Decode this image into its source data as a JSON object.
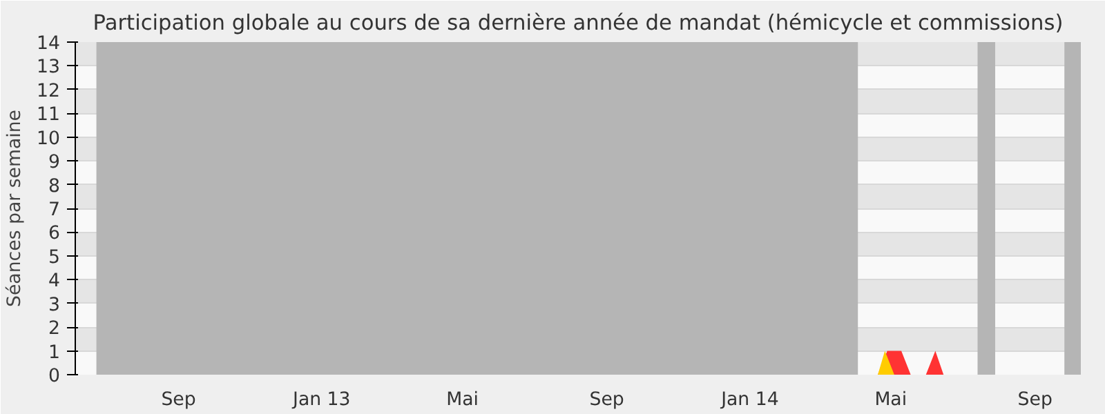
{
  "chart_data": {
    "type": "area",
    "title": "Participation globale au cours de sa dernière année de mandat (hémicycle et commissions)",
    "ylabel": "Séances par semaine",
    "xlim": [
      "2012-06-05",
      "2014-10-10"
    ],
    "ylim": [
      0,
      14
    ],
    "yticks": [
      0,
      1,
      2,
      3,
      4,
      5,
      6,
      7,
      8,
      9,
      10,
      11,
      12,
      13,
      14
    ],
    "xticks": [
      {
        "value": "2012-09-01",
        "label": "Sep"
      },
      {
        "value": "2013-01-01",
        "label": "Jan 13"
      },
      {
        "value": "2013-05-01",
        "label": "Mai"
      },
      {
        "value": "2013-09-01",
        "label": "Sep"
      },
      {
        "value": "2014-01-01",
        "label": "Jan 14"
      },
      {
        "value": "2014-05-01",
        "label": "Mai"
      },
      {
        "value": "2014-09-01",
        "label": "Sep"
      }
    ],
    "grid": "y",
    "bands": [
      {
        "axis": "x",
        "from": "2012-06-23",
        "to": "2014-04-03",
        "color": "#b5b5b5"
      },
      {
        "axis": "x",
        "from": "2014-07-14",
        "to": "2014-07-29",
        "color": "#b5b5b5"
      },
      {
        "axis": "x",
        "from": "2014-09-26",
        "to": "2014-10-10",
        "color": "#b5b5b5"
      }
    ],
    "series": [
      {
        "color": "#ff3333",
        "x": [
          "2014-04-20",
          "2014-04-28",
          "2014-05-10",
          "2014-05-18",
          "2014-05-31",
          "2014-06-08",
          "2014-06-15"
        ],
        "values": [
          0,
          1,
          1,
          0,
          0,
          1,
          0
        ]
      },
      {
        "color": "#ffcc00",
        "x": [
          "2014-04-20",
          "2014-04-26",
          "2014-05-04"
        ],
        "values": [
          0,
          1,
          0
        ]
      }
    ]
  }
}
